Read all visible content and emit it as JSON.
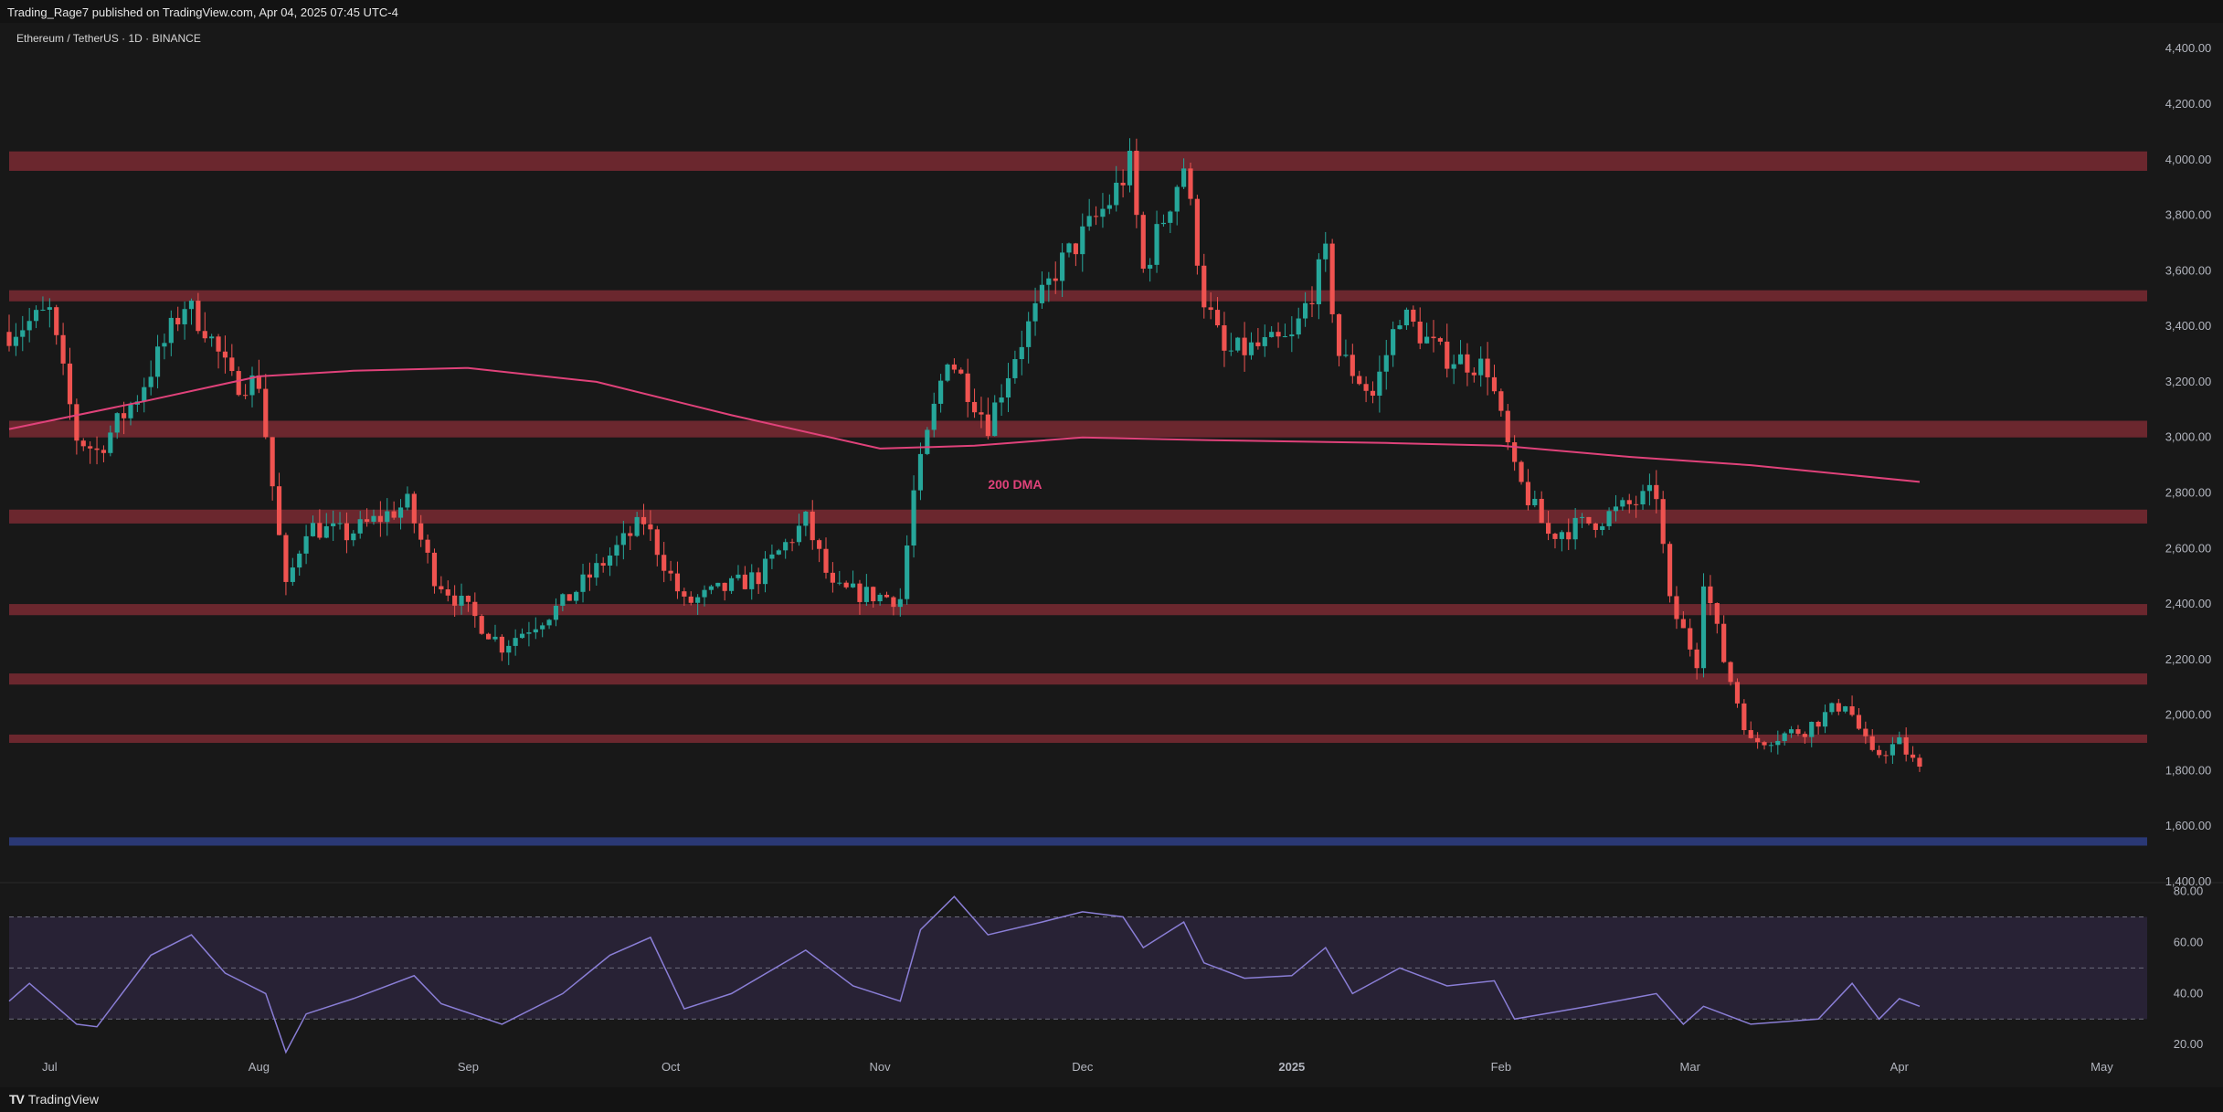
{
  "attribution": "Trading_Rage7 published on TradingView.com, Apr 04, 2025 07:45 UTC-4",
  "symbol": "Ethereum / TetherUS · 1D · BINANCE",
  "footer_logo": "TradingView",
  "colors": {
    "up": "#26a69a",
    "down": "#ef5350",
    "zone": "#7a2a32",
    "support_blue": "#2b3a7a",
    "ma": "#e0427a",
    "rsi": "#8a7ed6",
    "rsi_band": "#2a2438"
  },
  "chart_data": [
    {
      "type": "candlestick",
      "title": "Ethereum / TetherUS · 1D · BINANCE",
      "x_labels": [
        "Jul",
        "Aug",
        "Sep",
        "Oct",
        "Nov",
        "Dec",
        "2025",
        "Feb",
        "Mar",
        "Apr",
        "May"
      ],
      "x_label_dates": [
        "2024-07-01",
        "2024-08-01",
        "2024-09-01",
        "2024-10-01",
        "2024-11-01",
        "2024-12-01",
        "2025-01-01",
        "2025-02-01",
        "2025-03-01",
        "2025-04-01",
        "2025-05-01"
      ],
      "x_range": [
        "2024-06-25",
        "2025-05-05"
      ],
      "y_ticks": [
        "4,400.00",
        "4,200.00",
        "4,000.00",
        "3,800.00",
        "3,600.00",
        "3,400.00",
        "3,200.00",
        "3,000.00",
        "2,800.00",
        "2,600.00",
        "2,400.00",
        "2,200.00",
        "2,000.00",
        "1,800.00",
        "1,600.00",
        "1,400.00"
      ],
      "y_range": [
        1400,
        4460
      ],
      "close_anchors": [
        {
          "date": "2024-06-25",
          "close": 3380
        },
        {
          "date": "2024-07-01",
          "close": 3450
        },
        {
          "date": "2024-07-05",
          "close": 3000
        },
        {
          "date": "2024-07-08",
          "close": 2950
        },
        {
          "date": "2024-07-14",
          "close": 3150
        },
        {
          "date": "2024-07-21",
          "close": 3480
        },
        {
          "date": "2024-07-24",
          "close": 3400
        },
        {
          "date": "2024-07-28",
          "close": 3200
        },
        {
          "date": "2024-08-01",
          "close": 3200
        },
        {
          "date": "2024-08-05",
          "close": 2450
        },
        {
          "date": "2024-08-08",
          "close": 2680
        },
        {
          "date": "2024-08-14",
          "close": 2650
        },
        {
          "date": "2024-08-23",
          "close": 2760
        },
        {
          "date": "2024-08-27",
          "close": 2500
        },
        {
          "date": "2024-09-06",
          "close": 2250
        },
        {
          "date": "2024-09-15",
          "close": 2400
        },
        {
          "date": "2024-09-27",
          "close": 2700
        },
        {
          "date": "2024-10-03",
          "close": 2400
        },
        {
          "date": "2024-10-14",
          "close": 2500
        },
        {
          "date": "2024-10-21",
          "close": 2700
        },
        {
          "date": "2024-10-25",
          "close": 2450
        },
        {
          "date": "2024-11-04",
          "close": 2420
        },
        {
          "date": "2024-11-06",
          "close": 2800
        },
        {
          "date": "2024-11-11",
          "close": 3300
        },
        {
          "date": "2024-11-17",
          "close": 3050
        },
        {
          "date": "2024-11-21",
          "close": 3300
        },
        {
          "date": "2024-11-27",
          "close": 3600
        },
        {
          "date": "2024-12-05",
          "close": 3850
        },
        {
          "date": "2024-12-08",
          "close": 3980
        },
        {
          "date": "2024-12-10",
          "close": 3600
        },
        {
          "date": "2024-12-16",
          "close": 3980
        },
        {
          "date": "2024-12-19",
          "close": 3500
        },
        {
          "date": "2024-12-22",
          "close": 3300
        },
        {
          "date": "2025-01-01",
          "close": 3350
        },
        {
          "date": "2025-01-06",
          "close": 3650
        },
        {
          "date": "2025-01-08",
          "close": 3300
        },
        {
          "date": "2025-01-13",
          "close": 3150
        },
        {
          "date": "2025-01-17",
          "close": 3450
        },
        {
          "date": "2025-01-23",
          "close": 3300
        },
        {
          "date": "2025-01-30",
          "close": 3250
        },
        {
          "date": "2025-02-03",
          "close": 2870
        },
        {
          "date": "2025-02-08",
          "close": 2650
        },
        {
          "date": "2025-02-15",
          "close": 2700
        },
        {
          "date": "2025-02-24",
          "close": 2800
        },
        {
          "date": "2025-02-26",
          "close": 2400
        },
        {
          "date": "2025-03-02",
          "close": 2200
        },
        {
          "date": "2025-03-03",
          "close": 2500
        },
        {
          "date": "2025-03-06",
          "close": 2200
        },
        {
          "date": "2025-03-10",
          "close": 1900
        },
        {
          "date": "2025-03-18",
          "close": 1950
        },
        {
          "date": "2025-03-24",
          "close": 2050
        },
        {
          "date": "2025-03-28",
          "close": 1850
        },
        {
          "date": "2025-04-01",
          "close": 1900
        },
        {
          "date": "2025-04-04",
          "close": 1800
        }
      ],
      "resistance_zones": [
        {
          "from": 3960,
          "to": 4030
        },
        {
          "from": 3490,
          "to": 3530
        },
        {
          "from": 3000,
          "to": 3060
        },
        {
          "from": 2690,
          "to": 2740
        },
        {
          "from": 2360,
          "to": 2400
        },
        {
          "from": 2110,
          "to": 2150
        },
        {
          "from": 1900,
          "to": 1930
        }
      ],
      "support_zone": {
        "from": 1530,
        "to": 1560
      },
      "ma_200": {
        "label": "200 DMA",
        "points": [
          {
            "date": "2024-06-25",
            "value": 3030
          },
          {
            "date": "2024-07-15",
            "value": 3130
          },
          {
            "date": "2024-08-01",
            "value": 3220
          },
          {
            "date": "2024-08-15",
            "value": 3240
          },
          {
            "date": "2024-09-01",
            "value": 3250
          },
          {
            "date": "2024-09-20",
            "value": 3200
          },
          {
            "date": "2024-10-10",
            "value": 3080
          },
          {
            "date": "2024-11-01",
            "value": 2960
          },
          {
            "date": "2024-11-15",
            "value": 2970
          },
          {
            "date": "2024-12-01",
            "value": 3000
          },
          {
            "date": "2024-12-20",
            "value": 2990
          },
          {
            "date": "2025-01-15",
            "value": 2980
          },
          {
            "date": "2025-02-01",
            "value": 2970
          },
          {
            "date": "2025-02-20",
            "value": 2930
          },
          {
            "date": "2025-03-10",
            "value": 2900
          },
          {
            "date": "2025-04-04",
            "value": 2840
          }
        ]
      }
    },
    {
      "type": "line",
      "title": "",
      "y_ticks": [
        "80.00",
        "60.00",
        "40.00",
        "20.00"
      ],
      "y_range": [
        14,
        82
      ],
      "overbought": 70,
      "midline": 50,
      "oversold": 30,
      "rsi_anchors": [
        {
          "date": "2024-06-25",
          "value": 37
        },
        {
          "date": "2024-06-28",
          "value": 44
        },
        {
          "date": "2024-07-05",
          "value": 28
        },
        {
          "date": "2024-07-08",
          "value": 27
        },
        {
          "date": "2024-07-16",
          "value": 55
        },
        {
          "date": "2024-07-22",
          "value": 63
        },
        {
          "date": "2024-07-27",
          "value": 48
        },
        {
          "date": "2024-08-02",
          "value": 40
        },
        {
          "date": "2024-08-05",
          "value": 17
        },
        {
          "date": "2024-08-08",
          "value": 32
        },
        {
          "date": "2024-08-15",
          "value": 38
        },
        {
          "date": "2024-08-24",
          "value": 47
        },
        {
          "date": "2024-08-28",
          "value": 36
        },
        {
          "date": "2024-09-06",
          "value": 28
        },
        {
          "date": "2024-09-15",
          "value": 40
        },
        {
          "date": "2024-09-22",
          "value": 55
        },
        {
          "date": "2024-09-28",
          "value": 62
        },
        {
          "date": "2024-10-03",
          "value": 34
        },
        {
          "date": "2024-10-10",
          "value": 40
        },
        {
          "date": "2024-10-21",
          "value": 57
        },
        {
          "date": "2024-10-28",
          "value": 43
        },
        {
          "date": "2024-11-04",
          "value": 37
        },
        {
          "date": "2024-11-07",
          "value": 65
        },
        {
          "date": "2024-11-12",
          "value": 78
        },
        {
          "date": "2024-11-17",
          "value": 63
        },
        {
          "date": "2024-11-25",
          "value": 68
        },
        {
          "date": "2024-12-01",
          "value": 72
        },
        {
          "date": "2024-12-07",
          "value": 70
        },
        {
          "date": "2024-12-10",
          "value": 58
        },
        {
          "date": "2024-12-16",
          "value": 68
        },
        {
          "date": "2024-12-19",
          "value": 52
        },
        {
          "date": "2024-12-25",
          "value": 46
        },
        {
          "date": "2025-01-01",
          "value": 47
        },
        {
          "date": "2025-01-06",
          "value": 58
        },
        {
          "date": "2025-01-10",
          "value": 40
        },
        {
          "date": "2025-01-17",
          "value": 50
        },
        {
          "date": "2025-01-24",
          "value": 43
        },
        {
          "date": "2025-01-31",
          "value": 45
        },
        {
          "date": "2025-02-03",
          "value": 30
        },
        {
          "date": "2025-02-14",
          "value": 35
        },
        {
          "date": "2025-02-24",
          "value": 40
        },
        {
          "date": "2025-02-28",
          "value": 28
        },
        {
          "date": "2025-03-03",
          "value": 35
        },
        {
          "date": "2025-03-10",
          "value": 28
        },
        {
          "date": "2025-03-20",
          "value": 30
        },
        {
          "date": "2025-03-25",
          "value": 44
        },
        {
          "date": "2025-03-29",
          "value": 30
        },
        {
          "date": "2025-04-01",
          "value": 38
        },
        {
          "date": "2025-04-04",
          "value": 35
        }
      ]
    }
  ]
}
